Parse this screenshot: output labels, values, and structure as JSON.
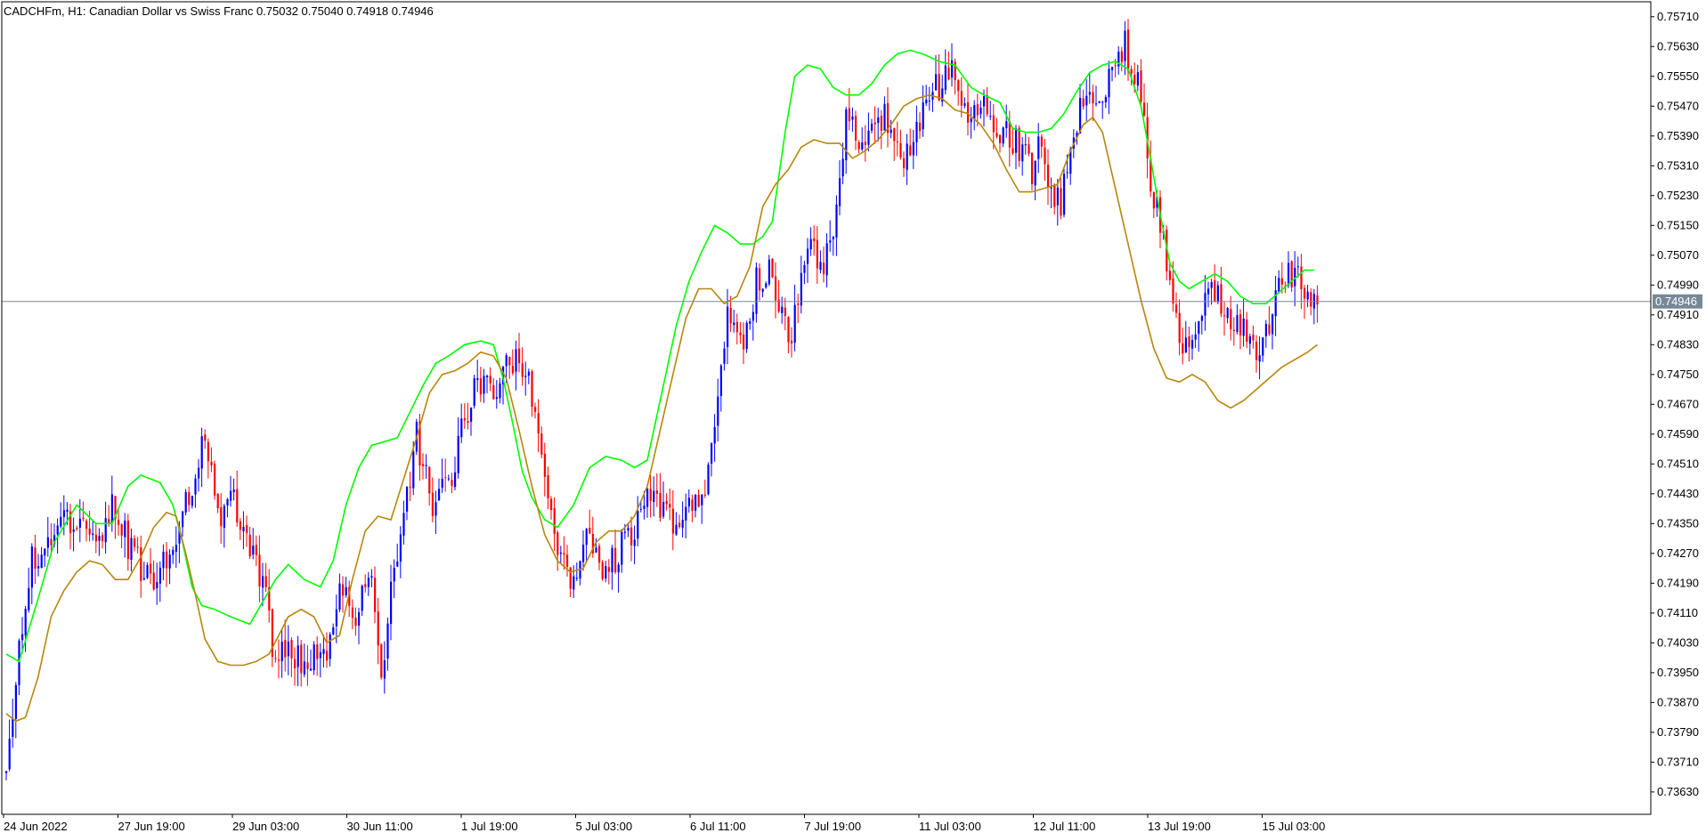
{
  "header": {
    "symbol": "CADCHFm",
    "timeframe": "H1",
    "description": "Canadian Dollar vs Swiss Franc",
    "ohlc": "0.75032 0.75040 0.74918 0.74946"
  },
  "colors": {
    "background": "#ffffff",
    "frame": "#000000",
    "bull_candle": "#0000ff",
    "bear_candle": "#ff0000",
    "fast_ma": "#00ff00",
    "slow_ma": "#b8860b",
    "price_line": "#778899",
    "price_tag_bg": "#778899"
  },
  "chart_data": {
    "type": "candlestick",
    "symbol": "CADCHFm",
    "timeframe": "H1",
    "current_price": 0.74946,
    "current_price_label": "0.74946",
    "ylim": [
      0.7357,
      0.7575
    ],
    "y_ticks": [
      "0.75710",
      "0.75630",
      "0.75550",
      "0.75470",
      "0.75390",
      "0.75310",
      "0.75230",
      "0.75150",
      "0.75070",
      "0.74990",
      "0.74910",
      "0.74830",
      "0.74750",
      "0.74670",
      "0.74590",
      "0.74510",
      "0.74430",
      "0.74350",
      "0.74270",
      "0.74190",
      "0.74110",
      "0.74030",
      "0.73950",
      "0.73870",
      "0.73790",
      "0.73710",
      "0.73630"
    ],
    "x_ticks": [
      "24 Jun 2022",
      "27 Jun 19:00",
      "29 Jun 03:00",
      "30 Jun 11:00",
      "1 Jul 19:00",
      "5 Jul 03:00",
      "6 Jul 11:00",
      "7 Jul 19:00",
      "11 Jul 03:00",
      "12 Jul 11:00",
      "13 Jul 19:00",
      "15 Jul 03:00"
    ],
    "close_path": [
      [
        0,
        0.7366
      ],
      [
        3,
        0.7395
      ],
      [
        8,
        0.7425
      ],
      [
        15,
        0.7433
      ],
      [
        22,
        0.7436
      ],
      [
        28,
        0.7428
      ],
      [
        33,
        0.7441
      ],
      [
        40,
        0.7425
      ],
      [
        46,
        0.742
      ],
      [
        52,
        0.7431
      ],
      [
        58,
        0.7446
      ],
      [
        62,
        0.7459
      ],
      [
        66,
        0.7437
      ],
      [
        70,
        0.7443
      ],
      [
        75,
        0.743
      ],
      [
        80,
        0.742
      ],
      [
        84,
        0.7395
      ],
      [
        88,
        0.7405
      ],
      [
        92,
        0.7396
      ],
      [
        96,
        0.7402
      ],
      [
        100,
        0.7398
      ],
      [
        104,
        0.742
      ],
      [
        109,
        0.7412
      ],
      [
        114,
        0.742
      ],
      [
        117,
        0.7393
      ],
      [
        120,
        0.7415
      ],
      [
        124,
        0.744
      ],
      [
        128,
        0.7458
      ],
      [
        133,
        0.744
      ],
      [
        138,
        0.7445
      ],
      [
        142,
        0.746
      ],
      [
        147,
        0.7475
      ],
      [
        152,
        0.747
      ],
      [
        157,
        0.7478
      ],
      [
        162,
        0.7477
      ],
      [
        166,
        0.746
      ],
      [
        171,
        0.743
      ],
      [
        176,
        0.7418
      ],
      [
        181,
        0.7433
      ],
      [
        186,
        0.742
      ],
      [
        191,
        0.7428
      ],
      [
        196,
        0.7435
      ],
      [
        200,
        0.7445
      ],
      [
        205,
        0.744
      ],
      [
        209,
        0.7432
      ],
      [
        214,
        0.744
      ],
      [
        218,
        0.7445
      ],
      [
        221,
        0.746
      ],
      [
        225,
        0.749
      ],
      [
        230,
        0.748
      ],
      [
        234,
        0.75
      ],
      [
        238,
        0.7505
      ],
      [
        242,
        0.749
      ],
      [
        245,
        0.7485
      ],
      [
        250,
        0.751
      ],
      [
        254,
        0.7505
      ],
      [
        258,
        0.751
      ],
      [
        262,
        0.7545
      ],
      [
        266,
        0.7535
      ],
      [
        270,
        0.754
      ],
      [
        274,
        0.7545
      ],
      [
        278,
        0.7535
      ],
      [
        282,
        0.7532
      ],
      [
        286,
        0.7545
      ],
      [
        290,
        0.7552
      ],
      [
        295,
        0.7555
      ],
      [
        300,
        0.7545
      ],
      [
        305,
        0.755
      ],
      [
        310,
        0.754
      ],
      [
        315,
        0.7538
      ],
      [
        320,
        0.753
      ],
      [
        323,
        0.7538
      ],
      [
        326,
        0.7525
      ],
      [
        329,
        0.752
      ],
      [
        333,
        0.754
      ],
      [
        337,
        0.755
      ],
      [
        341,
        0.7545
      ],
      [
        345,
        0.756
      ],
      [
        349,
        0.7563
      ],
      [
        353,
        0.7555
      ],
      [
        357,
        0.7528
      ],
      [
        361,
        0.751
      ],
      [
        365,
        0.749
      ],
      [
        368,
        0.7482
      ],
      [
        372,
        0.749
      ],
      [
        376,
        0.7498
      ],
      [
        380,
        0.7493
      ],
      [
        383,
        0.7485
      ],
      [
        386,
        0.749
      ],
      [
        390,
        0.748
      ],
      [
        394,
        0.749
      ],
      [
        398,
        0.75
      ],
      [
        402,
        0.7502
      ],
      [
        406,
        0.7496
      ],
      [
        408,
        0.7494
      ]
    ],
    "fast_ma": [
      [
        0,
        0.74
      ],
      [
        4,
        0.7398
      ],
      [
        10,
        0.7415
      ],
      [
        15,
        0.743
      ],
      [
        22,
        0.744
      ],
      [
        28,
        0.7435
      ],
      [
        33,
        0.7435
      ],
      [
        38,
        0.7445
      ],
      [
        42,
        0.7448
      ],
      [
        48,
        0.7446
      ],
      [
        52,
        0.744
      ],
      [
        55,
        0.743
      ],
      [
        58,
        0.7418
      ],
      [
        61,
        0.7413
      ],
      [
        65,
        0.7412
      ],
      [
        70,
        0.741
      ],
      [
        76,
        0.7408
      ],
      [
        80,
        0.7414
      ],
      [
        84,
        0.742
      ],
      [
        88,
        0.7424
      ],
      [
        93,
        0.742
      ],
      [
        98,
        0.7418
      ],
      [
        102,
        0.7425
      ],
      [
        106,
        0.744
      ],
      [
        110,
        0.745
      ],
      [
        114,
        0.7456
      ],
      [
        118,
        0.7457
      ],
      [
        122,
        0.7458
      ],
      [
        126,
        0.7465
      ],
      [
        130,
        0.7472
      ],
      [
        134,
        0.7478
      ],
      [
        138,
        0.748
      ],
      [
        143,
        0.7483
      ],
      [
        148,
        0.7484
      ],
      [
        152,
        0.7483
      ],
      [
        155,
        0.7474
      ],
      [
        158,
        0.7462
      ],
      [
        161,
        0.7449
      ],
      [
        164,
        0.7442
      ],
      [
        168,
        0.7436
      ],
      [
        172,
        0.7434
      ],
      [
        177,
        0.744
      ],
      [
        182,
        0.745
      ],
      [
        187,
        0.7453
      ],
      [
        192,
        0.7452
      ],
      [
        196,
        0.745
      ],
      [
        200,
        0.7452
      ],
      [
        205,
        0.7472
      ],
      [
        209,
        0.7488
      ],
      [
        213,
        0.75
      ],
      [
        217,
        0.7508
      ],
      [
        221,
        0.7515
      ],
      [
        225,
        0.7513
      ],
      [
        229,
        0.751
      ],
      [
        233,
        0.751
      ],
      [
        236,
        0.7512
      ],
      [
        239,
        0.7516
      ],
      [
        243,
        0.754
      ],
      [
        246,
        0.7555
      ],
      [
        250,
        0.7558
      ],
      [
        254,
        0.7557
      ],
      [
        258,
        0.7552
      ],
      [
        262,
        0.755
      ],
      [
        266,
        0.755
      ],
      [
        270,
        0.7553
      ],
      [
        274,
        0.7558
      ],
      [
        278,
        0.7561
      ],
      [
        282,
        0.7562
      ],
      [
        286,
        0.7561
      ],
      [
        291,
        0.7559
      ],
      [
        296,
        0.7558
      ],
      [
        301,
        0.7552
      ],
      [
        305,
        0.755
      ],
      [
        310,
        0.7548
      ],
      [
        314,
        0.7541
      ],
      [
        318,
        0.754
      ],
      [
        322,
        0.754
      ],
      [
        326,
        0.7541
      ],
      [
        330,
        0.7545
      ],
      [
        334,
        0.7551
      ],
      [
        338,
        0.7556
      ],
      [
        342,
        0.7558
      ],
      [
        346,
        0.7559
      ],
      [
        350,
        0.7557
      ],
      [
        354,
        0.7547
      ],
      [
        357,
        0.7533
      ],
      [
        360,
        0.7518
      ],
      [
        363,
        0.7505
      ],
      [
        366,
        0.75
      ],
      [
        369,
        0.7498
      ],
      [
        373,
        0.75
      ],
      [
        377,
        0.7502
      ],
      [
        381,
        0.75
      ],
      [
        385,
        0.7496
      ],
      [
        389,
        0.7494
      ],
      [
        393,
        0.7494
      ],
      [
        397,
        0.7497
      ],
      [
        401,
        0.75
      ],
      [
        405,
        0.7503
      ],
      [
        408,
        0.7503
      ]
    ],
    "slow_ma": [
      [
        0,
        0.7384
      ],
      [
        3,
        0.7382
      ],
      [
        6,
        0.7383
      ],
      [
        10,
        0.7394
      ],
      [
        14,
        0.741
      ],
      [
        18,
        0.7417
      ],
      [
        22,
        0.7422
      ],
      [
        26,
        0.7425
      ],
      [
        30,
        0.7424
      ],
      [
        34,
        0.742
      ],
      [
        38,
        0.742
      ],
      [
        42,
        0.7426
      ],
      [
        46,
        0.7434
      ],
      [
        50,
        0.7438
      ],
      [
        53,
        0.7437
      ],
      [
        56,
        0.7427
      ],
      [
        59,
        0.7416
      ],
      [
        62,
        0.7404
      ],
      [
        66,
        0.7398
      ],
      [
        70,
        0.7397
      ],
      [
        74,
        0.7397
      ],
      [
        78,
        0.7398
      ],
      [
        82,
        0.74
      ],
      [
        85,
        0.7405
      ],
      [
        88,
        0.741
      ],
      [
        92,
        0.7412
      ],
      [
        96,
        0.741
      ],
      [
        100,
        0.7403
      ],
      [
        104,
        0.7405
      ],
      [
        108,
        0.742
      ],
      [
        112,
        0.7433
      ],
      [
        116,
        0.7437
      ],
      [
        120,
        0.7436
      ],
      [
        124,
        0.7447
      ],
      [
        128,
        0.7458
      ],
      [
        132,
        0.747
      ],
      [
        136,
        0.7475
      ],
      [
        140,
        0.7476
      ],
      [
        144,
        0.7478
      ],
      [
        148,
        0.7481
      ],
      [
        152,
        0.748
      ],
      [
        156,
        0.7474
      ],
      [
        160,
        0.746
      ],
      [
        164,
        0.7445
      ],
      [
        168,
        0.7432
      ],
      [
        172,
        0.7425
      ],
      [
        176,
        0.7422
      ],
      [
        180,
        0.7423
      ],
      [
        184,
        0.743
      ],
      [
        188,
        0.7433
      ],
      [
        192,
        0.7433
      ],
      [
        196,
        0.7437
      ],
      [
        200,
        0.7445
      ],
      [
        204,
        0.746
      ],
      [
        208,
        0.7475
      ],
      [
        212,
        0.749
      ],
      [
        216,
        0.7498
      ],
      [
        220,
        0.7498
      ],
      [
        224,
        0.7494
      ],
      [
        228,
        0.7496
      ],
      [
        232,
        0.7504
      ],
      [
        236,
        0.752
      ],
      [
        240,
        0.7526
      ],
      [
        244,
        0.753
      ],
      [
        248,
        0.7536
      ],
      [
        252,
        0.7538
      ],
      [
        256,
        0.7537
      ],
      [
        260,
        0.7537
      ],
      [
        264,
        0.7533
      ],
      [
        268,
        0.7535
      ],
      [
        272,
        0.7538
      ],
      [
        276,
        0.7542
      ],
      [
        280,
        0.7547
      ],
      [
        284,
        0.7549
      ],
      [
        288,
        0.755
      ],
      [
        292,
        0.7549
      ],
      [
        296,
        0.7546
      ],
      [
        300,
        0.7545
      ],
      [
        304,
        0.7542
      ],
      [
        308,
        0.7537
      ],
      [
        312,
        0.753
      ],
      [
        316,
        0.7524
      ],
      [
        320,
        0.7524
      ],
      [
        324,
        0.7525
      ],
      [
        328,
        0.7526
      ],
      [
        332,
        0.7535
      ],
      [
        336,
        0.7542
      ],
      [
        339,
        0.7544
      ],
      [
        342,
        0.754
      ],
      [
        346,
        0.7525
      ],
      [
        350,
        0.751
      ],
      [
        354,
        0.7495
      ],
      [
        358,
        0.7482
      ],
      [
        362,
        0.7474
      ],
      [
        366,
        0.7473
      ],
      [
        370,
        0.7475
      ],
      [
        374,
        0.7473
      ],
      [
        378,
        0.7468
      ],
      [
        382,
        0.7466
      ],
      [
        386,
        0.7468
      ],
      [
        390,
        0.7471
      ],
      [
        394,
        0.7474
      ],
      [
        398,
        0.7477
      ],
      [
        402,
        0.7479
      ],
      [
        406,
        0.7481
      ],
      [
        409,
        0.7483
      ]
    ],
    "bar_count": 410
  }
}
